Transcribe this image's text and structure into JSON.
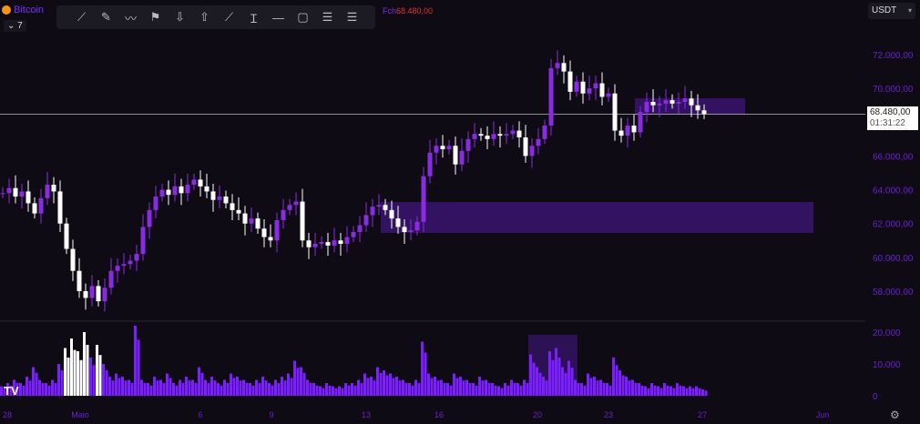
{
  "symbol": "Bitcoin",
  "interval": "7",
  "toolbar": [
    "trend-line-icon",
    "brush-icon",
    "path-icon",
    "flag-icon",
    "arrow-down-icon",
    "arrow-up-icon",
    "measure-icon",
    "text-cursor-icon",
    "horizontal-line-icon",
    "rectangle-icon",
    "range-icon",
    "settings-list-icon"
  ],
  "close_label": "Fch",
  "close_value": "68.480,00",
  "currency": "USDT",
  "price_label": {
    "price": "68.480,00",
    "countdown": "01:31:22"
  },
  "colors": {
    "up": "#8a2be2",
    "down": "#ffffff",
    "volume": "#7b1fff",
    "zone": "#3a1470",
    "axis": "#6a1fd0"
  },
  "chart_data": {
    "type": "candlestick",
    "price_ticks": [
      "72.000,00",
      "70.000,00",
      "66.000,00",
      "64.000,00",
      "62.000,00",
      "60.000,00",
      "58.000,00"
    ],
    "price_tick_values": [
      72000,
      70000,
      66000,
      64000,
      62000,
      60000,
      58000
    ],
    "volume_ticks": [
      "20.000",
      "10.000",
      "0"
    ],
    "volume_tick_values": [
      20000,
      10000,
      0
    ],
    "x_labels": [
      "28",
      "Maio",
      "6",
      "9",
      "13",
      "16",
      "20",
      "23",
      "27",
      "Jun"
    ],
    "current_price": 68480,
    "closes": [
      63.8,
      64.1,
      63.6,
      63.9,
      63.2,
      62.6,
      63.5,
      64.3,
      63.9,
      62.0,
      60.5,
      59.2,
      58.0,
      57.6,
      58.3,
      57.4,
      58.2,
      59.2,
      59.5,
      59.6,
      59.8,
      60.2,
      61.8,
      62.8,
      63.6,
      64.0,
      63.7,
      64.2,
      63.8,
      64.3,
      64.6,
      64.2,
      63.9,
      63.4,
      63.6,
      63.2,
      62.8,
      62.6,
      62.0,
      62.3,
      61.7,
      61.2,
      61.0,
      62.2,
      62.8,
      63.1,
      63.3,
      61.0,
      60.6,
      60.8,
      60.9,
      60.7,
      61.0,
      60.8,
      61.2,
      61.5,
      61.9,
      62.5,
      63.0,
      63.1,
      62.8,
      62.3,
      61.8,
      61.5,
      61.6,
      62.1,
      64.8,
      66.2,
      66.6,
      66.4,
      66.6,
      65.5,
      66.3,
      67.0,
      67.3,
      67.2,
      67.0,
      67.3,
      67.2,
      67.3,
      67.5,
      67.1,
      66.0,
      66.6,
      67.0,
      67.8,
      71.2,
      71.5,
      71.0,
      69.8,
      70.4,
      69.7,
      70.0,
      70.3,
      69.5,
      69.7,
      67.5,
      67.2,
      67.8,
      67.4,
      68.6,
      69.2,
      69.0,
      69.1,
      69.3,
      69.1,
      69.2,
      69.4,
      69.0,
      68.7,
      68.48
    ],
    "volumes": [
      3,
      4,
      5,
      4,
      6,
      9,
      5,
      4,
      5,
      10,
      15,
      18,
      14,
      20,
      12,
      16,
      10,
      6,
      7,
      6,
      5,
      22,
      5,
      4,
      6,
      5,
      7,
      4,
      5,
      6,
      5,
      9,
      5,
      6,
      4,
      5,
      7,
      6,
      5,
      4,
      5,
      6,
      4,
      5,
      6,
      7,
      11,
      9,
      5,
      4,
      3,
      4,
      3,
      3,
      4,
      4,
      5,
      7,
      6,
      9,
      8,
      7,
      6,
      5,
      4,
      5,
      17,
      7,
      6,
      5,
      4,
      7,
      6,
      5,
      4,
      6,
      5,
      4,
      3,
      4,
      5,
      4,
      5,
      13,
      9,
      6,
      14,
      15,
      9,
      11,
      5,
      4,
      7,
      6,
      5,
      4,
      12,
      8,
      6,
      5,
      4,
      3,
      4,
      3,
      4,
      3,
      4,
      3,
      3,
      3,
      2
    ]
  }
}
